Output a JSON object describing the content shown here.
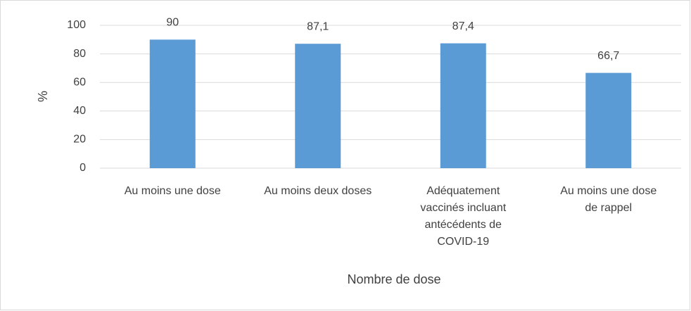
{
  "chart_data": {
    "type": "bar",
    "x_label": "Nombre de dose",
    "y_label": "%",
    "categories": [
      "Au moins une dose",
      "Au moins deux doses",
      "Adéquatement\nvaccinés incluant\nantécédents de\nCOVID-19",
      "Au moins une dose\nde rappel"
    ],
    "values": [
      90,
      87.1,
      87.4,
      66.7
    ],
    "value_labels": [
      "90",
      "87,1",
      "87,4",
      "66,7"
    ],
    "color": "#5b9bd5",
    "ylim": [
      0,
      100
    ],
    "yticks": [
      0,
      20,
      40,
      60,
      80,
      100
    ],
    "grid": true
  }
}
